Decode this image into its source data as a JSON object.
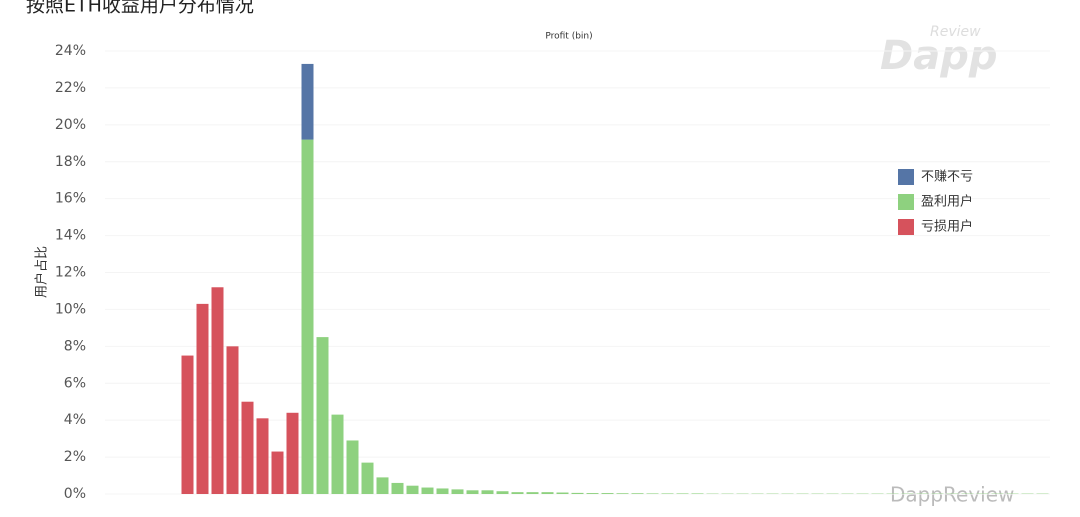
{
  "chart_data": {
    "type": "stacked_bar",
    "title": "按照ETH收益用户分布情况",
    "subtitle": "Profit (bin)",
    "y_label": "用户占比",
    "categories": [
      null,
      null,
      null,
      null,
      null,
      null,
      null,
      null,
      null,
      null,
      null,
      null,
      null,
      null,
      null,
      null,
      null,
      null,
      null,
      null,
      null,
      null,
      null,
      null,
      null,
      null,
      null,
      null,
      null,
      null,
      null,
      null,
      null,
      null,
      null,
      null,
      null,
      null,
      null,
      null,
      null,
      null,
      null,
      null,
      null,
      null,
      null,
      null,
      null,
      null,
      null,
      null,
      null,
      null,
      null,
      null,
      null,
      null,
      null,
      null,
      null,
      null,
      null
    ],
    "series": [
      {
        "name": "不赚不亏",
        "color": "#5575a6",
        "values": [
          null,
          null,
          null,
          null,
          null,
          null,
          null,
          null,
          null,
          null,
          null,
          null,
          null,
          4.1,
          null,
          null,
          null,
          null,
          null,
          null,
          null,
          null,
          null,
          null,
          null,
          null,
          null,
          null,
          null,
          null,
          null,
          null,
          null,
          null,
          null,
          null,
          null,
          null,
          null,
          null,
          null,
          null,
          null,
          null,
          null,
          null,
          null,
          null,
          null,
          null,
          null,
          null,
          null,
          null,
          null,
          null,
          null,
          null,
          null,
          null,
          null,
          null,
          null
        ]
      },
      {
        "name": "盈利用户",
        "color": "#8ed17f",
        "values": [
          null,
          null,
          null,
          null,
          null,
          null,
          null,
          null,
          null,
          null,
          null,
          null,
          null,
          19.2,
          8.5,
          4.3,
          2.9,
          1.7,
          0.9,
          0.6,
          0.45,
          0.35,
          0.3,
          0.25,
          0.2,
          0.2,
          0.15,
          0.1,
          0.1,
          0.1,
          0.08,
          0.06,
          0.05,
          0.05,
          0.04,
          0.04,
          0.03,
          0.03,
          0.03,
          0.03,
          0.02,
          0.02,
          0.02,
          0.02,
          0.02,
          0.02,
          0.02,
          0.02,
          0.02,
          0.02,
          0.02,
          0.02,
          0.02,
          0.02,
          0.02,
          0.02,
          0.02,
          0.02,
          0.02,
          0.02,
          0.02,
          0.02,
          0.02
        ]
      },
      {
        "name": "亏损用户",
        "color": "#d6525c",
        "values": [
          null,
          null,
          null,
          null,
          null,
          7.5,
          10.3,
          11.2,
          8.0,
          5.0,
          4.1,
          2.3,
          4.4,
          null,
          null,
          null,
          null,
          null,
          null,
          null,
          null,
          null,
          null,
          null,
          null,
          null,
          null,
          null,
          null,
          null,
          null,
          null,
          null,
          null,
          null,
          null,
          null,
          null,
          null,
          null,
          null,
          null,
          null,
          null,
          null,
          null,
          null,
          null,
          null,
          null,
          null,
          null,
          null,
          null,
          null,
          null,
          null,
          null,
          null,
          null,
          null,
          null,
          null
        ]
      }
    ],
    "ylim": [
      0,
      24
    ],
    "yticks": [
      {
        "value": 0,
        "label": "0%"
      },
      {
        "value": 2,
        "label": "2%"
      },
      {
        "value": 4,
        "label": "4%"
      },
      {
        "value": 6,
        "label": "6%"
      },
      {
        "value": 8,
        "label": "8%"
      },
      {
        "value": 10,
        "label": "10%"
      },
      {
        "value": 12,
        "label": "12%"
      },
      {
        "value": 14,
        "label": "14%"
      },
      {
        "value": 16,
        "label": "16%"
      },
      {
        "value": 18,
        "label": "18%"
      },
      {
        "value": 20,
        "label": "20%"
      },
      {
        "value": 22,
        "label": "22%"
      },
      {
        "value": 24,
        "label": "24%"
      }
    ],
    "grid": true,
    "legend": "right"
  },
  "logo": {
    "small": "Review",
    "main": "Dapp"
  },
  "watermark": "DappReview"
}
